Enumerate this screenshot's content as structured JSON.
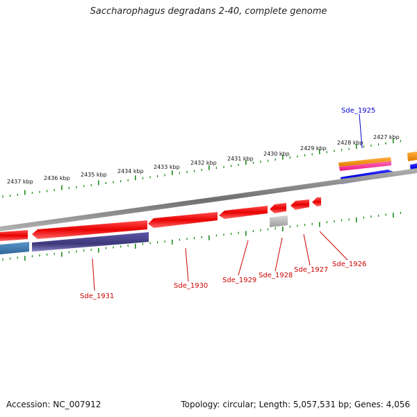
{
  "title": "Saccharophagus degradans 2-40, complete genome",
  "footer": {
    "accession": "Accession: NC_007912",
    "stats": "Topology: circular; Length: 5,057,531 bp; Genes: 4,056"
  },
  "colors": {
    "forward_tick": "#1a8a1a",
    "reverse_tick": "#1a8a1a",
    "backbone": "#7f7f7f",
    "cds": "#ff1a1a",
    "rna": "#b8b8b8",
    "blue_gene": "#1010ee",
    "orange_gene": "#f08c10",
    "pink_gene": "#ff3a9a",
    "purple_feature": "#4a4590",
    "steel_feature": "#3f7ab0",
    "label_red": "#cc0000",
    "label_blue": "#0000cc"
  },
  "ticks": [
    "2437 kbp",
    "2436 kbp",
    "2435 kbp",
    "2434 kbp",
    "2433 kbp",
    "2432 kbp",
    "2431 kbp",
    "2430 kbp",
    "2429 kbp",
    "2428 kbp",
    "2427 kbp"
  ],
  "genes": {
    "forward": [
      {
        "label": "Sde_1925"
      }
    ],
    "reverse": [
      {
        "label": "Sde_1931"
      },
      {
        "label": "Sde_1930"
      },
      {
        "label": "Sde_1929"
      },
      {
        "label": "Sde_1928"
      },
      {
        "label": "Sde_1927"
      },
      {
        "label": "Sde_1926"
      }
    ]
  }
}
